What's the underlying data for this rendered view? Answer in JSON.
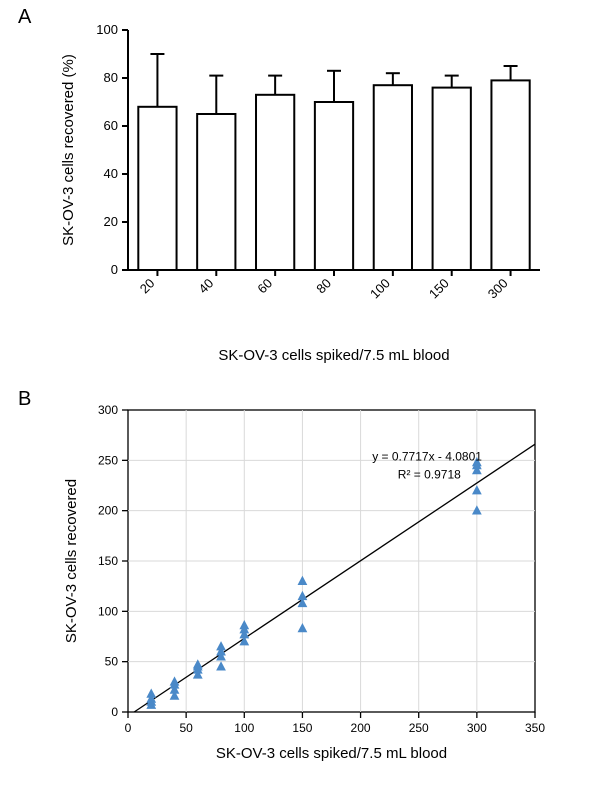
{
  "panelA": {
    "label": "A",
    "type": "bar-with-error",
    "xlabel": "SK-OV-3 cells spiked/7.5 mL blood",
    "ylabel": "SK-OV-3 cells recovered (%)",
    "categories": [
      "20",
      "40",
      "60",
      "80",
      "100",
      "150",
      "300"
    ],
    "values": [
      68,
      65,
      73,
      70,
      77,
      76,
      79
    ],
    "err_up": [
      22,
      16,
      8,
      13,
      5,
      5,
      6
    ],
    "ylim": [
      0,
      100
    ],
    "yticks": [
      0,
      20,
      40,
      60,
      80,
      100
    ],
    "bar_fill": "#ffffff",
    "bar_stroke": "#000000",
    "bar_stroke_width": 2,
    "err_color": "#000000",
    "axis_color": "#000000",
    "axis_width": 2,
    "label_fontsize": 15,
    "tick_fontsize": 13
  },
  "panelB": {
    "label": "B",
    "type": "scatter-with-fit",
    "xlabel": "SK-OV-3 cells spiked/7.5 mL blood",
    "ylabel": "SK-OV-3 cells recovered",
    "xlim": [
      0,
      350
    ],
    "ylim": [
      0,
      300
    ],
    "xticks": [
      0,
      50,
      100,
      150,
      200,
      250,
      300,
      350
    ],
    "yticks": [
      0,
      50,
      100,
      150,
      200,
      250,
      300
    ],
    "points": [
      [
        20,
        7
      ],
      [
        20,
        10
      ],
      [
        20,
        18
      ],
      [
        20,
        13
      ],
      [
        40,
        16
      ],
      [
        40,
        22
      ],
      [
        40,
        30
      ],
      [
        40,
        27
      ],
      [
        60,
        37
      ],
      [
        60,
        42
      ],
      [
        60,
        45
      ],
      [
        60,
        47
      ],
      [
        80,
        45
      ],
      [
        80,
        55
      ],
      [
        80,
        60
      ],
      [
        80,
        65
      ],
      [
        100,
        70
      ],
      [
        100,
        77
      ],
      [
        100,
        82
      ],
      [
        100,
        86
      ],
      [
        150,
        83
      ],
      [
        150,
        108
      ],
      [
        150,
        115
      ],
      [
        150,
        130
      ],
      [
        300,
        200
      ],
      [
        300,
        220
      ],
      [
        300,
        240
      ],
      [
        300,
        245
      ],
      [
        300,
        248
      ]
    ],
    "marker_color": "#4a89c8",
    "marker_size": 7,
    "fit_line": {
      "slope": 0.7717,
      "intercept": -4.0801,
      "color": "#000000",
      "width": 1.3
    },
    "equation_text": "y = 0.7717x - 4.0801",
    "r2_text": "R² = 0.9718",
    "anno_fontsize": 12,
    "axis_color": "#000000",
    "grid_color": "#d9d9d9",
    "axis_width": 1.3,
    "label_fontsize": 15,
    "tick_fontsize": 12
  }
}
